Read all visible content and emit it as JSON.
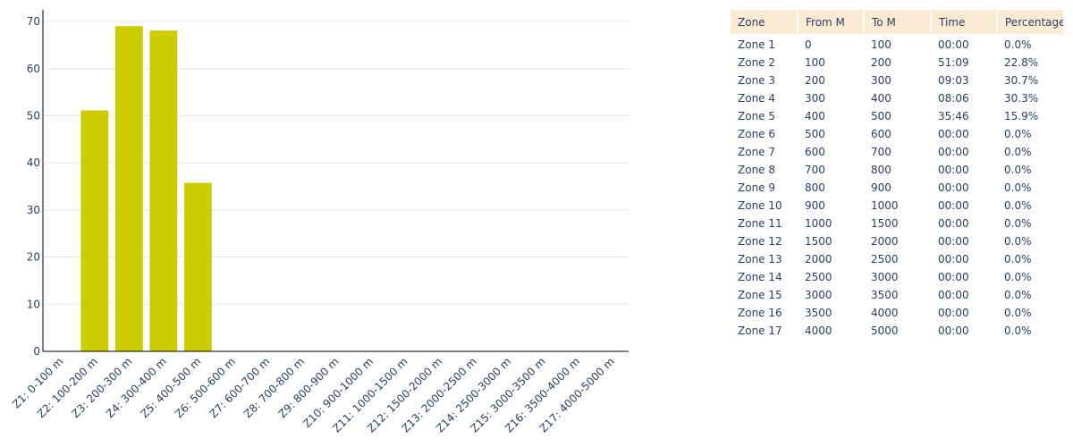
{
  "chart_data": {
    "type": "bar",
    "categories": [
      "Z1: 0-100 m",
      "Z2: 100-200 m",
      "Z3: 200-300 m",
      "Z4: 300-400 m",
      "Z5: 400-500 m",
      "Z6: 500-600 m",
      "Z7: 600-700 m",
      "Z8: 700-800 m",
      "Z9: 800-900 m",
      "Z10: 900-1000 m",
      "Z11: 1000-1500 m",
      "Z12: 1500-2000 m",
      "Z13: 2000-2500 m",
      "Z14: 2500-3000 m",
      "Z15: 3000-3500 m",
      "Z16: 3500-4000 m",
      "Z17: 4000-5000 m"
    ],
    "values": [
      0,
      51.15,
      69.05,
      68.1,
      35.77,
      0,
      0,
      0,
      0,
      0,
      0,
      0,
      0,
      0,
      0,
      0,
      0
    ],
    "ylim": [
      0,
      72.5
    ],
    "yticks": [
      0,
      10,
      20,
      30,
      40,
      50,
      60,
      70
    ],
    "grid": true,
    "bar_color": "#cccc00",
    "title": "",
    "xlabel": "",
    "ylabel": ""
  },
  "table": {
    "header_bg": "#fbebd5",
    "columns": [
      "Zone",
      "From M",
      "To M",
      "Time",
      "Percentage"
    ],
    "rows": [
      [
        "Zone 1",
        "0",
        "100",
        "00:00",
        "0.0%"
      ],
      [
        "Zone 2",
        "100",
        "200",
        "51:09",
        "22.8%"
      ],
      [
        "Zone 3",
        "200",
        "300",
        "09:03",
        "30.7%"
      ],
      [
        "Zone 4",
        "300",
        "400",
        "08:06",
        "30.3%"
      ],
      [
        "Zone 5",
        "400",
        "500",
        "35:46",
        "15.9%"
      ],
      [
        "Zone 6",
        "500",
        "600",
        "00:00",
        "0.0%"
      ],
      [
        "Zone 7",
        "600",
        "700",
        "00:00",
        "0.0%"
      ],
      [
        "Zone 8",
        "700",
        "800",
        "00:00",
        "0.0%"
      ],
      [
        "Zone 9",
        "800",
        "900",
        "00:00",
        "0.0%"
      ],
      [
        "Zone 10",
        "900",
        "1000",
        "00:00",
        "0.0%"
      ],
      [
        "Zone 11",
        "1000",
        "1500",
        "00:00",
        "0.0%"
      ],
      [
        "Zone 12",
        "1500",
        "2000",
        "00:00",
        "0.0%"
      ],
      [
        "Zone 13",
        "2000",
        "2500",
        "00:00",
        "0.0%"
      ],
      [
        "Zone 14",
        "2500",
        "3000",
        "00:00",
        "0.0%"
      ],
      [
        "Zone 15",
        "3000",
        "3500",
        "00:00",
        "0.0%"
      ],
      [
        "Zone 16",
        "3500",
        "4000",
        "00:00",
        "0.0%"
      ],
      [
        "Zone 17",
        "4000",
        "5000",
        "00:00",
        "0.0%"
      ]
    ]
  }
}
